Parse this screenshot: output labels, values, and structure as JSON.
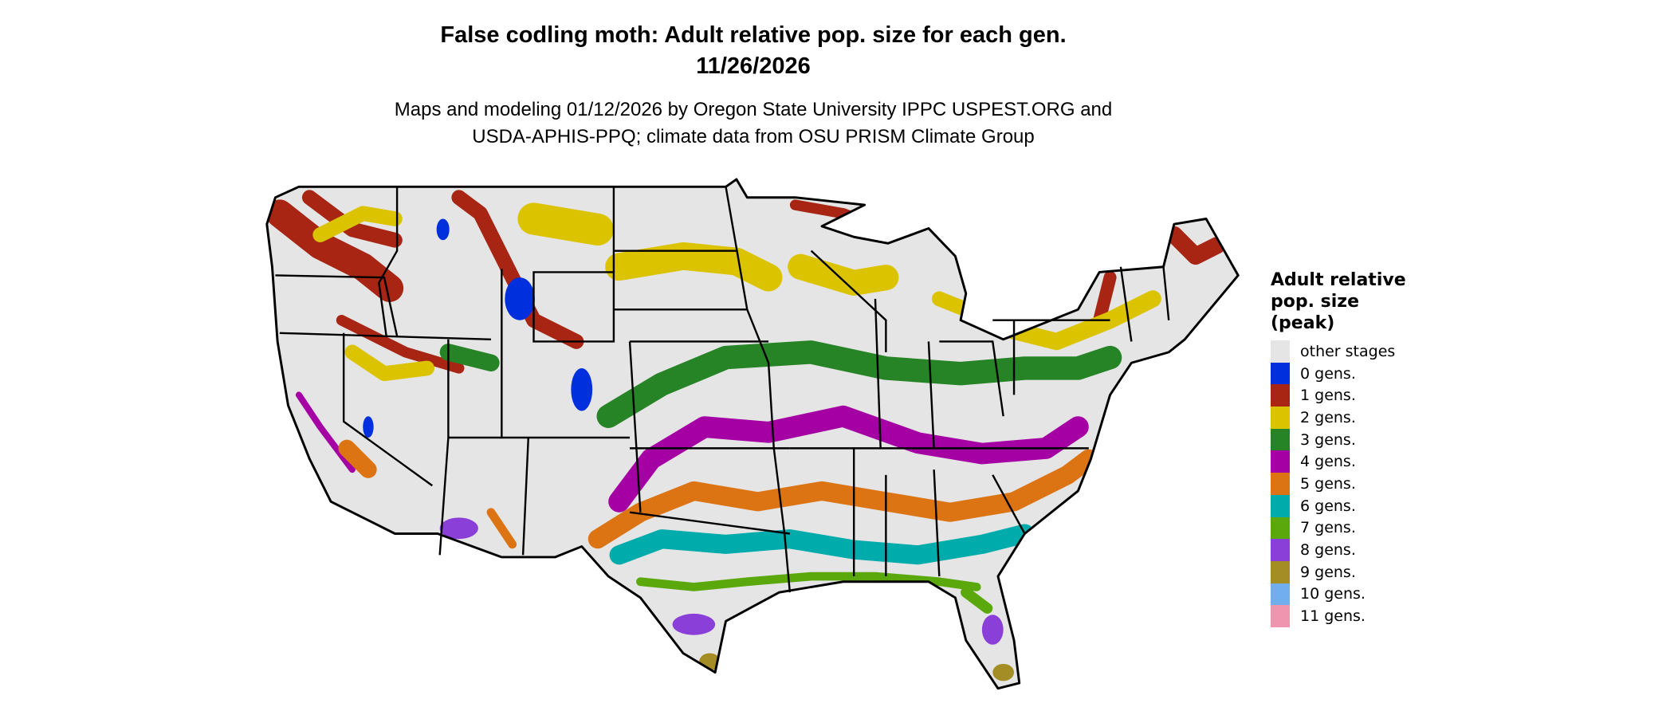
{
  "title": {
    "line1": "False codling moth: Adult relative pop. size for each gen.",
    "line2": "11/26/2026"
  },
  "subtitle": {
    "line1": "Maps and modeling 01/12/2026 by Oregon State University IPPC USPEST.ORG and",
    "line2": "USDA-APHIS-PPQ; climate data from OSU PRISM Climate Group"
  },
  "map": {
    "background_color": "#e5e5e5",
    "border_color": "#000000"
  },
  "legend": {
    "title_lines": [
      "Adult relative",
      "pop. size",
      "(peak)"
    ],
    "items": [
      {
        "label": "other stages",
        "color": "#e5e5e5"
      },
      {
        "label": "0 gens.",
        "color": "#0030dd"
      },
      {
        "label": "1 gens.",
        "color": "#a82514"
      },
      {
        "label": "2 gens.",
        "color": "#dcc300"
      },
      {
        "label": "3 gens.",
        "color": "#268426"
      },
      {
        "label": "4 gens.",
        "color": "#a400a4"
      },
      {
        "label": "5 gens.",
        "color": "#dc7414"
      },
      {
        "label": "6 gens.",
        "color": "#00abab"
      },
      {
        "label": "7 gens.",
        "color": "#5aa80c"
      },
      {
        "label": "8 gens.",
        "color": "#8a40d8"
      },
      {
        "label": "9 gens.",
        "color": "#a38d24"
      },
      {
        "label": "10 gens.",
        "color": "#70aef0"
      },
      {
        "label": "11 gens.",
        "color": "#f095b0"
      }
    ]
  }
}
